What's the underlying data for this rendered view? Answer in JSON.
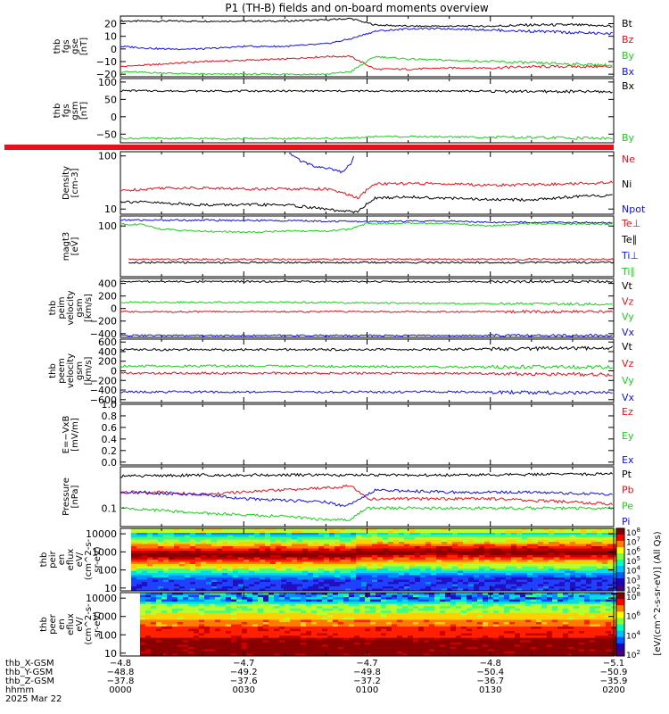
{
  "title": "P1  (TH-B) fields and on-board moments overview",
  "colors": {
    "black": "#000000",
    "red": "#e8101a",
    "green": "#18d018",
    "blue": "#1010e6"
  },
  "chart_data": [
    {
      "id": "fgs-gse",
      "type": "line",
      "ylabel": [
        "thb",
        "fgs",
        "gse",
        "[nT]"
      ],
      "yticks": [
        "20",
        "10",
        "0",
        "−10",
        "−20"
      ],
      "ylim": [
        -22,
        26
      ],
      "legend": [
        {
          "label": "Bt",
          "color": "#000000"
        },
        {
          "label": "Bz",
          "color": "#e8101a"
        },
        {
          "label": "By",
          "color": "#18d018"
        },
        {
          "label": "Bx",
          "color": "#1010e6"
        }
      ],
      "series": [
        {
          "name": "Bt",
          "color": "#000000",
          "x": [
            0,
            10,
            20,
            30,
            40,
            50,
            56,
            62,
            70,
            80,
            90,
            100,
            110,
            120
          ],
          "y": [
            22,
            22,
            22,
            22,
            22,
            23,
            24,
            19,
            18,
            18,
            18,
            19,
            19,
            18
          ]
        },
        {
          "name": "Bz",
          "color": "#e8101a",
          "x": [
            0,
            10,
            20,
            30,
            40,
            50,
            56,
            62,
            70,
            80,
            90,
            100,
            110,
            120
          ],
          "y": [
            -14,
            -12,
            -10,
            -9,
            -8,
            -6,
            -6,
            -16,
            -16,
            -15,
            -15,
            -14,
            -14,
            -14
          ]
        },
        {
          "name": "By",
          "color": "#18d018",
          "x": [
            0,
            10,
            20,
            30,
            40,
            50,
            56,
            62,
            70,
            80,
            90,
            100,
            110,
            120
          ],
          "y": [
            -18,
            -19,
            -20,
            -20,
            -20,
            -20,
            -18,
            -6,
            -8,
            -9,
            -10,
            -11,
            -12,
            -13
          ]
        },
        {
          "name": "Bx",
          "color": "#1010e6",
          "x": [
            0,
            10,
            20,
            30,
            40,
            50,
            56,
            62,
            70,
            80,
            90,
            100,
            110,
            120
          ],
          "y": [
            2,
            0,
            0,
            2,
            2,
            4,
            8,
            14,
            16,
            16,
            15,
            14,
            13,
            12
          ]
        }
      ]
    },
    {
      "id": "fgs-gsm",
      "type": "line",
      "ylabel": [
        "thb",
        "fgs",
        "gsm",
        "[nT]"
      ],
      "yticks": [
        "100",
        "50",
        "0",
        "−50"
      ],
      "ylim": [
        -75,
        110
      ],
      "legend": [
        {
          "label": "Bx",
          "color": "#000000"
        },
        {
          "label": "By",
          "color": "#18d018"
        }
      ],
      "series": [
        {
          "name": "Bx",
          "color": "#000000",
          "x": [
            0,
            20,
            40,
            60,
            80,
            100,
            120
          ],
          "y": [
            75,
            74,
            74,
            74,
            74,
            73,
            72
          ]
        },
        {
          "name": "By",
          "color": "#18d018",
          "x": [
            0,
            20,
            40,
            56,
            62,
            80,
            100,
            120
          ],
          "y": [
            -62,
            -63,
            -63,
            -62,
            -57,
            -58,
            -60,
            -62
          ]
        }
      ]
    },
    {
      "id": "density",
      "type": "line",
      "yscale": "log",
      "ylabel": [
        "Density",
        "[cm-3]"
      ],
      "yticks": [
        "100",
        "10"
      ],
      "ylim": [
        8,
        120
      ],
      "legend": [
        {
          "label": "Ne",
          "color": "#e8101a"
        },
        {
          "label": "Ni",
          "color": "#000000"
        },
        {
          "label": "Npot",
          "color": "#1010e6"
        }
      ],
      "series": [
        {
          "name": "Ne",
          "color": "#e8101a",
          "x": [
            0,
            10,
            20,
            30,
            40,
            50,
            54,
            58,
            62,
            70,
            80,
            90,
            100,
            110,
            120
          ],
          "y": [
            22,
            25,
            25,
            24,
            24,
            24,
            20,
            16,
            30,
            30,
            30,
            28,
            29,
            30,
            32
          ]
        },
        {
          "name": "Ni",
          "color": "#000000",
          "x": [
            0,
            10,
            20,
            30,
            40,
            50,
            54,
            58,
            62,
            70,
            80,
            90,
            100,
            110,
            120
          ],
          "y": [
            14,
            13,
            12,
            12,
            12,
            10,
            9,
            9,
            16,
            17,
            16,
            15,
            15,
            17,
            18
          ]
        },
        {
          "name": "Npot",
          "color": "#1010e6",
          "x": [
            41,
            44,
            47,
            50,
            52,
            54,
            56,
            57
          ],
          "y": [
            110,
            80,
            65,
            60,
            55,
            50,
            70,
            110
          ]
        }
      ]
    },
    {
      "id": "temperature",
      "type": "line",
      "yscale": "log",
      "ylabel": [
        "magt3",
        "[eV]"
      ],
      "yticks": [
        "100"
      ],
      "ylim": [
        3,
        200
      ],
      "legend": [
        {
          "label": "Te⊥",
          "color": "#e8101a"
        },
        {
          "label": "Te∥",
          "color": "#000000"
        },
        {
          "label": "Ti⊥",
          "color": "#1010e6"
        },
        {
          "label": "Ti∥",
          "color": "#18d018"
        }
      ],
      "series": [
        {
          "name": "Te⊥",
          "color": "#e8101a",
          "x": [
            2,
            10,
            20,
            30,
            40,
            50,
            60,
            70,
            80,
            90,
            100,
            110,
            120
          ],
          "y": [
            10,
            10,
            10,
            10,
            10,
            10,
            10,
            10,
            10,
            10,
            10,
            10,
            10
          ]
        },
        {
          "name": "Te∥",
          "color": "#000000",
          "x": [
            2,
            10,
            20,
            30,
            40,
            50,
            60,
            70,
            80,
            90,
            100,
            110,
            120
          ],
          "y": [
            8,
            8,
            8,
            8,
            8,
            8,
            8,
            8,
            8,
            8,
            8,
            8,
            8
          ]
        },
        {
          "name": "Ti⊥",
          "color": "#1010e6",
          "x": [
            0,
            20,
            40,
            50,
            60,
            70,
            80,
            90,
            100,
            110,
            120
          ],
          "y": [
            150,
            150,
            145,
            140,
            135,
            140,
            140,
            130,
            130,
            128,
            125
          ]
        },
        {
          "name": "Ti∥",
          "color": "#18d018",
          "x": [
            0,
            5,
            10,
            20,
            30,
            40,
            50,
            56,
            60,
            70,
            80,
            90,
            100,
            110,
            120
          ],
          "y": [
            115,
            110,
            80,
            70,
            65,
            70,
            70,
            80,
            120,
            120,
            120,
            100,
            120,
            115,
            115
          ]
        }
      ]
    },
    {
      "id": "peim-velocity",
      "type": "line",
      "ylabel": [
        "thb",
        "peim",
        "velocity",
        "gsm",
        "[km/s]"
      ],
      "yticks": [
        "400",
        "200",
        "0",
        "−200",
        "−400"
      ],
      "ylim": [
        -460,
        480
      ],
      "legend": [
        {
          "label": "Vt",
          "color": "#000000"
        },
        {
          "label": "Vz",
          "color": "#e8101a"
        },
        {
          "label": "Vy",
          "color": "#18d018"
        },
        {
          "label": "Vx",
          "color": "#1010e6"
        }
      ],
      "series": [
        {
          "name": "Vt",
          "color": "#000000",
          "x": [
            0,
            40,
            80,
            120
          ],
          "y": [
            430,
            430,
            430,
            430
          ]
        },
        {
          "name": "Vz",
          "color": "#e8101a",
          "x": [
            0,
            40,
            80,
            120
          ],
          "y": [
            -50,
            -50,
            -50,
            -50
          ]
        },
        {
          "name": "Vy",
          "color": "#18d018",
          "x": [
            0,
            40,
            80,
            120
          ],
          "y": [
            100,
            100,
            80,
            70
          ]
        },
        {
          "name": "Vx",
          "color": "#1010e6",
          "x": [
            0,
            40,
            80,
            120
          ],
          "y": [
            -430,
            -430,
            -430,
            -430
          ]
        }
      ]
    },
    {
      "id": "peem-velocity",
      "type": "line",
      "ylabel": [
        "thb",
        "peem",
        "velocity",
        "gsm",
        "[km/s]"
      ],
      "yticks": [
        "600",
        "400",
        "200",
        "0",
        "−200",
        "−400",
        "−600"
      ],
      "ylim": [
        -660,
        660
      ],
      "legend": [
        {
          "label": "Vt",
          "color": "#000000"
        },
        {
          "label": "Vz",
          "color": "#e8101a"
        },
        {
          "label": "Vy",
          "color": "#18d018"
        },
        {
          "label": "Vx",
          "color": "#1010e6"
        }
      ],
      "series": [
        {
          "name": "Vt",
          "color": "#000000",
          "x": [
            0,
            40,
            80,
            120
          ],
          "y": [
            440,
            440,
            450,
            480
          ]
        },
        {
          "name": "Vz",
          "color": "#e8101a",
          "x": [
            0,
            40,
            80,
            120
          ],
          "y": [
            -50,
            -50,
            -50,
            -80
          ]
        },
        {
          "name": "Vy",
          "color": "#18d018",
          "x": [
            0,
            40,
            80,
            120
          ],
          "y": [
            100,
            100,
            80,
            80
          ]
        },
        {
          "name": "Vx",
          "color": "#1010e6",
          "x": [
            0,
            40,
            80,
            120
          ],
          "y": [
            -440,
            -440,
            -440,
            -460
          ]
        }
      ]
    },
    {
      "id": "efield",
      "type": "line",
      "ylabel": [
        "E=−VxB",
        "[mV/m]"
      ],
      "yticks": [
        "1.0",
        "0.8",
        "0.6",
        "0.4",
        "0.2",
        "0.0"
      ],
      "ylim": [
        -0.05,
        1.0
      ],
      "legend": [
        {
          "label": "Ez",
          "color": "#e8101a"
        },
        {
          "label": "Ey",
          "color": "#18d018"
        },
        {
          "label": "Ex",
          "color": "#1010e6"
        }
      ],
      "series": []
    },
    {
      "id": "pressure",
      "type": "line",
      "yscale": "log",
      "ylabel": [
        "Pressure",
        "[nPa]"
      ],
      "yticks": [
        "0.1"
      ],
      "ylim": [
        0.045,
        0.6
      ],
      "legend": [
        {
          "label": "Pt",
          "color": "#000000"
        },
        {
          "label": "Pb",
          "color": "#e8101a"
        },
        {
          "label": "Pe",
          "color": "#18d018"
        },
        {
          "label": "Pi",
          "color": "#1010e6"
        }
      ],
      "series": [
        {
          "name": "Pt",
          "color": "#000000",
          "x": [
            0,
            20,
            40,
            60,
            80,
            100,
            120
          ],
          "y": [
            0.4,
            0.42,
            0.42,
            0.42,
            0.42,
            0.43,
            0.44
          ]
        },
        {
          "name": "Pb",
          "color": "#e8101a",
          "x": [
            0,
            10,
            20,
            30,
            40,
            50,
            56,
            60,
            70,
            80,
            90,
            100,
            110,
            120
          ],
          "y": [
            0.2,
            0.2,
            0.18,
            0.2,
            0.22,
            0.24,
            0.26,
            0.15,
            0.15,
            0.15,
            0.15,
            0.14,
            0.13,
            0.12
          ]
        },
        {
          "name": "Pe",
          "color": "#18d018",
          "x": [
            0,
            10,
            20,
            30,
            40,
            50,
            56,
            60,
            70,
            80,
            90,
            100,
            110,
            120
          ],
          "y": [
            0.1,
            0.09,
            0.08,
            0.075,
            0.07,
            0.06,
            0.06,
            0.1,
            0.1,
            0.1,
            0.1,
            0.1,
            0.1,
            0.1
          ]
        },
        {
          "name": "Pi",
          "color": "#1010e6",
          "x": [
            0,
            10,
            20,
            30,
            40,
            50,
            54,
            58,
            62,
            70,
            80,
            90,
            100,
            110,
            120
          ],
          "y": [
            0.2,
            0.19,
            0.18,
            0.15,
            0.14,
            0.13,
            0.11,
            0.14,
            0.22,
            0.21,
            0.2,
            0.2,
            0.2,
            0.19,
            0.18
          ]
        }
      ]
    },
    {
      "id": "peir-spectrogram",
      "type": "heatmap",
      "yscale": "log",
      "ylabel": [
        "thb",
        "peir",
        "en",
        "eflux",
        "eV/",
        "(cm^2-s-",
        "sr-eV)"
      ],
      "yticks": [
        "10000",
        "1000",
        "100",
        "10"
      ],
      "ylim": [
        7,
        20000
      ]
    },
    {
      "id": "peer-spectrogram",
      "type": "heatmap",
      "yscale": "log",
      "ylabel": [
        "thb",
        "peer",
        "en",
        "eflux",
        "eV/",
        "(cm^2-s-",
        "sr-eV)"
      ],
      "yticks": [
        "10000",
        "1000",
        "100",
        "10"
      ],
      "ylim": [
        7,
        20000
      ]
    }
  ],
  "colorbar": {
    "label": "[eV/(cm^2-s-sr-eV)]",
    "side_label": "[eV/(cm^2-s-sr-eV)] (All Qs)",
    "top_ticks": [
      "10^8",
      "10^7",
      "10^6",
      "10^5",
      "10^4",
      "10^3",
      "10^2"
    ],
    "bottom_ticks": [
      "10^8",
      "10^6",
      "10^4",
      "10^2"
    ]
  },
  "time_axis": {
    "rows": [
      {
        "label": "thb_X-GSM",
        "values": [
          "−4.8",
          "−4.7",
          "−4.7",
          "−4.8",
          "−5.1"
        ]
      },
      {
        "label": "thb_Y-GSM",
        "values": [
          "−48.8",
          "−49.2",
          "−49.8",
          "−50.4",
          "−50.9"
        ]
      },
      {
        "label": "thb_Z-GSM",
        "values": [
          "−37.8",
          "−37.6",
          "−37.2",
          "−36.7",
          "−35.9"
        ]
      },
      {
        "label": "hhmm",
        "values": [
          "0000",
          "0030",
          "0100",
          "0130",
          "0200"
        ]
      }
    ],
    "date": "2025 Mar 22",
    "minutes": [
      0,
      30,
      60,
      90,
      120
    ]
  }
}
